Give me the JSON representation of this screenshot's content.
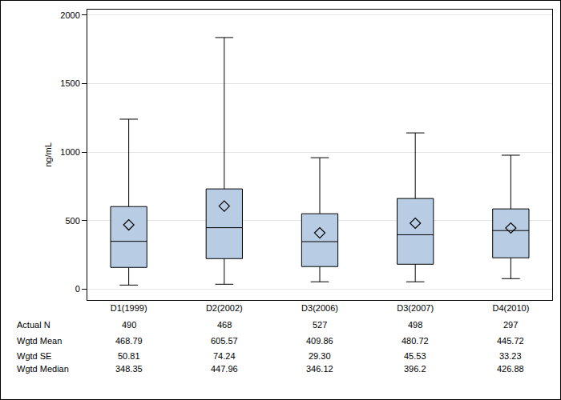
{
  "chart_data": {
    "type": "box",
    "y_label": "ng/mL",
    "categories": [
      "D1(1999)",
      "D2(2002)",
      "D3(2006)",
      "D3(2007)",
      "D4(2010)"
    ],
    "q1": [
      158,
      222,
      164,
      181,
      228
    ],
    "q3": [
      602,
      731,
      550,
      661,
      585
    ],
    "whisker_low": [
      29,
      35,
      53,
      53,
      76
    ],
    "whisker_high": [
      1240,
      1836,
      959,
      1140,
      977
    ],
    "stats": [
      {
        "label": "Actual N",
        "values": [
          490,
          468,
          527,
          498,
          297
        ]
      },
      {
        "label": "Wgtd Mean",
        "values": [
          468.79,
          605.57,
          409.86,
          480.72,
          445.72
        ]
      },
      {
        "label": "Wgtd SE",
        "values": [
          50.81,
          74.24,
          29.3,
          45.53,
          33.23
        ],
        "value_labels": [
          "50.81",
          "74.24",
          "29.30",
          "45.53",
          "33.23"
        ]
      },
      {
        "label": "Wgtd Median",
        "values": [
          348.35,
          447.96,
          346.12,
          396.2,
          426.88
        ]
      }
    ],
    "color": "#b8cce4",
    "marker": "diamond",
    "ylim": [
      -80,
      2040
    ],
    "yticks": [
      0,
      500,
      1000,
      1500,
      2000
    ],
    "grid": true
  }
}
